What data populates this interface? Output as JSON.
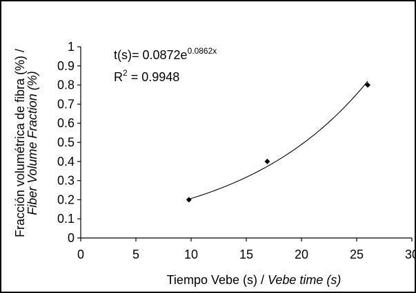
{
  "chart_data": {
    "type": "scatter",
    "title": "",
    "xlabel": "Tiempo Vebe (s) / ",
    "xlabel_italic": "Vebe time (s)",
    "ylabel": "Fracción volumétrica de fibra (%)  /",
    "ylabel_italic": "Fiber Volume Fraction (%)",
    "xlim": [
      0,
      30
    ],
    "ylim": [
      0,
      1
    ],
    "x_ticks": [
      "0",
      "5",
      "10",
      "15",
      "20",
      "25",
      "30"
    ],
    "y_ticks": [
      "0",
      "0.1",
      "0.2",
      "0.3",
      "0.4",
      "0.5",
      "0.6",
      "0.7",
      "0.8",
      "0.9",
      "1"
    ],
    "grid": false,
    "series": [
      {
        "marker": "diamond",
        "points": [
          {
            "x": 9.8,
            "y": 0.2
          },
          {
            "x": 16.9,
            "y": 0.4
          },
          {
            "x": 26.0,
            "y": 0.8
          }
        ]
      }
    ],
    "trendline": {
      "type": "exponential",
      "a": 0.0872,
      "b": 0.0862,
      "x_range": [
        9.8,
        26.0
      ]
    },
    "equation": {
      "prefix": "t(s)= 0.0872e",
      "exponent": "0.0862x",
      "r2_prefix": "R",
      "r2_sup": "2",
      "r2_value": " = 0.9948"
    },
    "colors": {
      "marker": "#000000",
      "line": "#000000",
      "axis": "#000000"
    }
  }
}
